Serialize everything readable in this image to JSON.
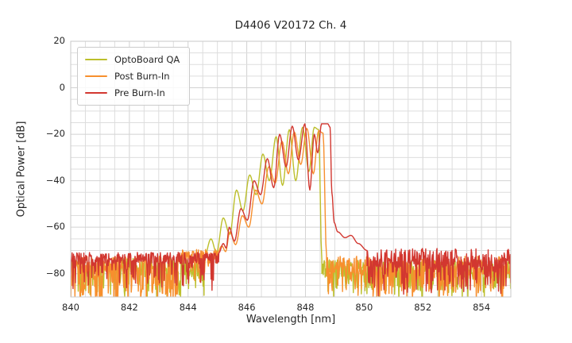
{
  "text_color": "#262626",
  "chart_data": {
    "type": "line",
    "title": "D4406 V20172 Ch. 4",
    "xlabel": "Wavelength [nm]",
    "ylabel": "Optical Power [dB]",
    "xlim": [
      840,
      855
    ],
    "ylim": [
      -90,
      20
    ],
    "xticks": {
      "values": [
        840,
        842,
        844,
        846,
        848,
        850,
        852,
        854
      ],
      "labels": [
        "840",
        "842",
        "844",
        "846",
        "848",
        "850",
        "852",
        "854"
      ]
    },
    "yticks": {
      "values": [
        20,
        0,
        -20,
        -40,
        -60,
        -80
      ],
      "labels": [
        "20",
        "0",
        "−20",
        "−40",
        "−60",
        "−80"
      ]
    },
    "grid": {
      "on": true,
      "minor_x_nm": 0.5,
      "minor_y_db": 5,
      "minor_color": "#dddddd",
      "major_color": "#d2d2d2",
      "spine_color": "#c9c9c9"
    },
    "legend": {
      "position": "upper left"
    },
    "mode_spacing_nm": 0.45,
    "noise_floor_db": -75,
    "peak_power_db": {
      "pre_burn_in": -15.5,
      "post_burn_in": -17.5,
      "optoboard_qa": -17
    },
    "series": [
      {
        "name": "OptoBoard QA",
        "color": "#bcbf2b",
        "seed": 11,
        "parts": [
          {
            "type": "noise",
            "x0": 840.0,
            "x1": 844.55,
            "mean": -77,
            "jitter": 4,
            "spike_prob": 0.3,
            "spike_depth": 12
          },
          {
            "type": "modes",
            "extrema": [
              [
                844.55,
                -73
              ],
              [
                844.78,
                -65
              ],
              [
                844.97,
                -71
              ],
              [
                845.2,
                -56
              ],
              [
                845.42,
                -63
              ],
              [
                845.65,
                -44
              ],
              [
                845.87,
                -53
              ],
              [
                846.1,
                -37.5
              ],
              [
                846.32,
                -46
              ],
              [
                846.55,
                -28.5
              ],
              [
                846.77,
                -40
              ],
              [
                847.0,
                -21
              ],
              [
                847.22,
                -42
              ],
              [
                847.45,
                -18
              ],
              [
                847.67,
                -40
              ],
              [
                847.9,
                -17
              ],
              [
                848.12,
                -36
              ],
              [
                848.3,
                -17
              ],
              [
                848.45,
                -18
              ],
              [
                848.56,
                -74
              ]
            ]
          },
          {
            "type": "noise",
            "x0": 848.56,
            "x1": 855.0,
            "mean": -78,
            "jitter": 4,
            "spike_prob": 0.28,
            "spike_depth": 11
          }
        ]
      },
      {
        "name": "Post Burn-In",
        "color": "#f78f2e",
        "seed": 7,
        "parts": [
          {
            "type": "noise",
            "x0": 840.0,
            "x1": 843.65,
            "mean": -76,
            "jitter": 3.6,
            "spike_prob": 0.6,
            "spike_depth": 16
          },
          {
            "type": "noise",
            "x0": 843.65,
            "x1": 845.0,
            "mean": -72.5,
            "jitter": 3,
            "spike_prob": 0.22,
            "spike_depth": 10
          },
          {
            "type": "modes",
            "extrema": [
              [
                845.0,
                -71
              ],
              [
                845.15,
                -68
              ],
              [
                845.28,
                -70.5
              ],
              [
                845.42,
                -62
              ],
              [
                845.62,
                -67.5
              ],
              [
                845.85,
                -55
              ],
              [
                846.07,
                -60
              ],
              [
                846.3,
                -44
              ],
              [
                846.52,
                -50
              ],
              [
                846.75,
                -34
              ],
              [
                846.97,
                -41
              ],
              [
                847.2,
                -23
              ],
              [
                847.42,
                -37
              ],
              [
                847.62,
                -19
              ],
              [
                847.84,
                -33
              ],
              [
                848.05,
                -17.5
              ],
              [
                848.27,
                -37
              ],
              [
                848.45,
                -18.5
              ],
              [
                848.6,
                -19.5
              ],
              [
                848.72,
                -72
              ]
            ]
          },
          {
            "type": "noise",
            "x0": 848.72,
            "x1": 855.0,
            "mean": -76.5,
            "jitter": 4,
            "spike_prob": 0.38,
            "spike_depth": 13
          }
        ]
      },
      {
        "name": "Pre Burn-In",
        "color": "#d23730",
        "seed": 23,
        "parts": [
          {
            "type": "noise",
            "x0": 840.0,
            "x1": 845.05,
            "mean": -73.2,
            "jitter": 2.4,
            "spike_prob": 0.26,
            "spike_depth": 12
          },
          {
            "type": "modes",
            "extrema": [
              [
                845.05,
                -71
              ],
              [
                845.2,
                -67
              ],
              [
                845.3,
                -69
              ],
              [
                845.4,
                -60
              ],
              [
                845.58,
                -66
              ],
              [
                845.8,
                -52
              ],
              [
                846.02,
                -57
              ],
              [
                846.25,
                -40
              ],
              [
                846.47,
                -46
              ],
              [
                846.7,
                -30.5
              ],
              [
                846.92,
                -43
              ],
              [
                847.12,
                -20
              ],
              [
                847.34,
                -34
              ],
              [
                847.55,
                -16.5
              ],
              [
                847.76,
                -31
              ],
              [
                847.98,
                -15.5
              ],
              [
                848.15,
                -44
              ],
              [
                848.3,
                -20
              ],
              [
                848.42,
                -28
              ],
              [
                848.55,
                -15.5
              ],
              [
                848.76,
                -15.5
              ],
              [
                848.84,
                -17
              ],
              [
                848.9,
                -45
              ],
              [
                848.98,
                -58
              ],
              [
                849.1,
                -62
              ],
              [
                849.35,
                -64.5
              ],
              [
                849.55,
                -63.5
              ],
              [
                849.8,
                -67
              ],
              [
                850.1,
                -70
              ]
            ]
          },
          {
            "type": "noise",
            "x0": 850.1,
            "x1": 855.0,
            "mean": -73.3,
            "jitter": 4.2,
            "spike_prob": 0.45,
            "spike_depth": 13
          }
        ]
      }
    ]
  }
}
